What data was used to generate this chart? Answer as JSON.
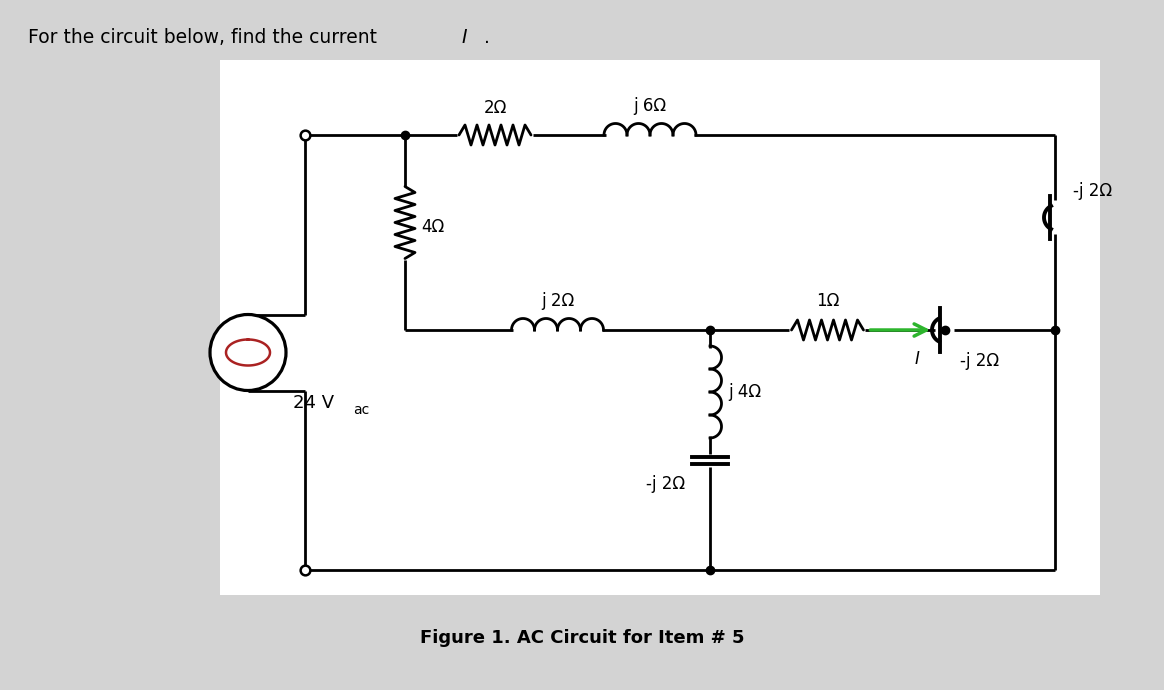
{
  "bg_color": "#d3d3d3",
  "box_color": "#f0f0f0",
  "lc": "#000000",
  "arrow_color": "#2db52d",
  "wave_color": "#aa2222",
  "title": "Figure 1. AC Circuit for Item # 5",
  "question_text": "For the circuit below, find the current ",
  "question_I": "I",
  "labels": {
    "R1": "2Ω",
    "L1": "j 6Ω",
    "C1": "-j 2Ω",
    "R2": "4Ω",
    "L2": "j 2Ω",
    "R3": "1Ω",
    "C2": "-j 2Ω",
    "L3": "j 4Ω",
    "C3": "-j 2Ω",
    "VS": "24 V",
    "VS_sub": "ac",
    "I_label": "I"
  },
  "fig_width": 11.64,
  "fig_height": 6.9,
  "dpi": 100
}
